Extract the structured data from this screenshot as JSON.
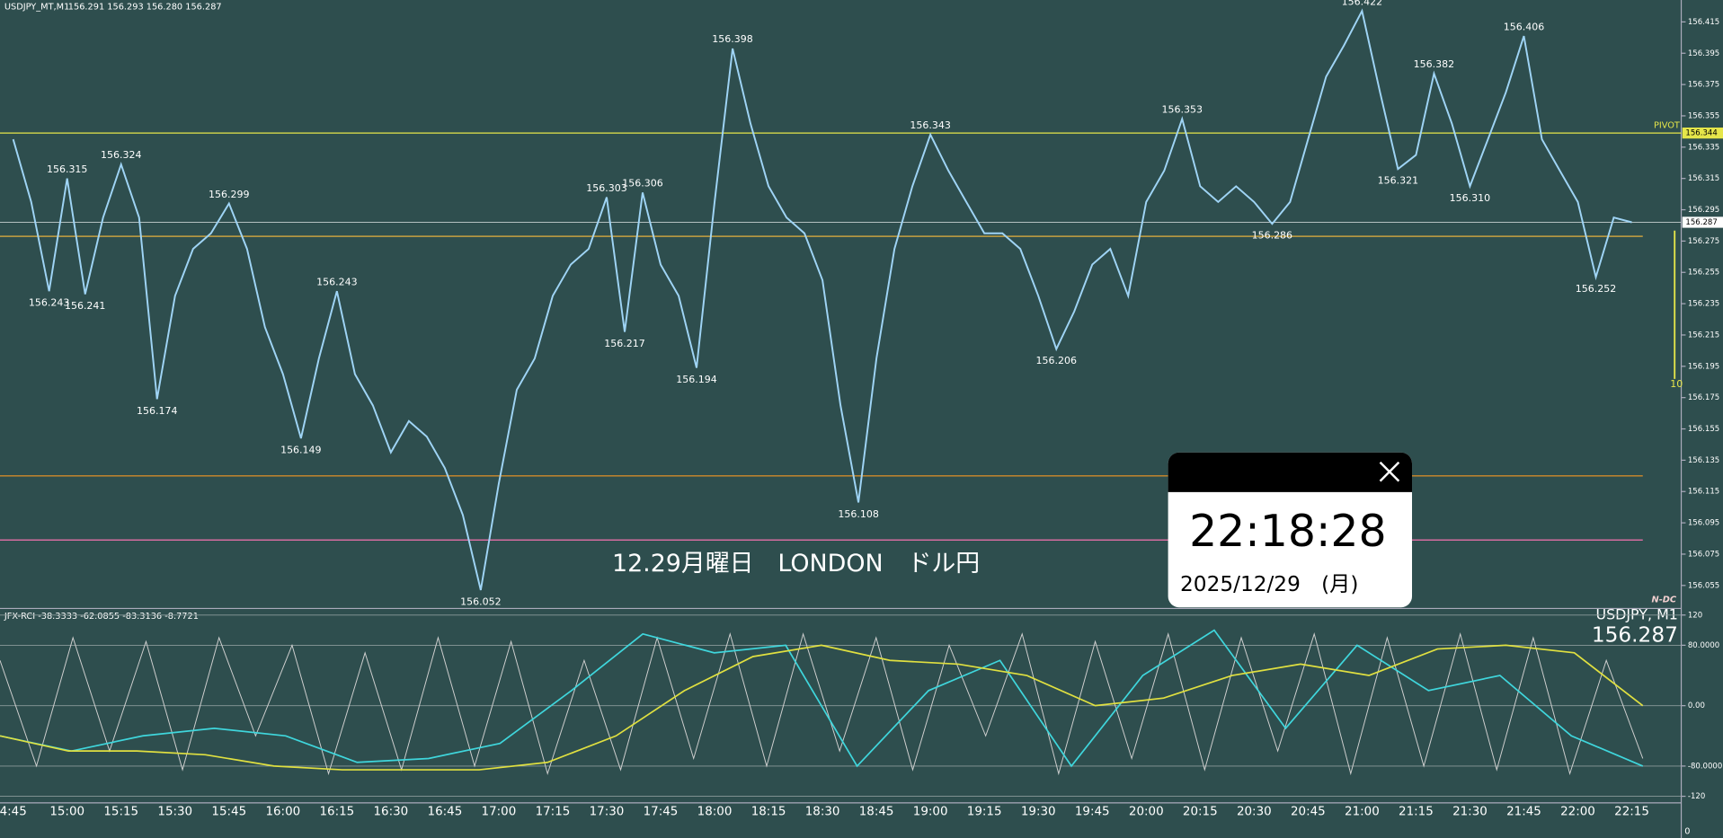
{
  "header": {
    "symbol": "USDJPY_MT,M1",
    "ohlc": "156.291 156.293 156.280 156.287"
  },
  "chart_data": [
    {
      "type": "line",
      "categories": [
        "4:45",
        null,
        null,
        "15:00",
        null,
        null,
        "15:15",
        null,
        null,
        "15:30",
        null,
        null,
        "15:45",
        null,
        null,
        "16:00",
        null,
        null,
        "16:15",
        null,
        null,
        "16:30",
        null,
        null,
        "16:45",
        null,
        null,
        "17:00",
        null,
        null,
        "17:15",
        null,
        null,
        "17:30",
        null,
        null,
        "17:45",
        null,
        null,
        "18:00",
        null,
        null,
        "18:15",
        null,
        null,
        "18:30",
        null,
        null,
        "18:45",
        null,
        null,
        "19:00",
        null,
        null,
        "19:15",
        null,
        null,
        "19:30",
        null,
        null,
        "19:45",
        null,
        null,
        "20:00",
        null,
        null,
        "20:15",
        null,
        null,
        "20:30",
        null,
        null,
        "20:45",
        null,
        null,
        "21:00",
        null,
        null,
        "21:15",
        null,
        null,
        "21:30",
        null,
        null,
        "21:45",
        null,
        null,
        "22:00",
        null,
        null,
        "22:15"
      ],
      "series": [
        {
          "color": "#9fd4f5",
          "values": [
            156.34,
            156.3,
            156.243,
            156.315,
            156.241,
            156.29,
            156.324,
            156.29,
            156.174,
            156.24,
            156.27,
            156.28,
            156.299,
            156.27,
            156.22,
            156.19,
            156.149,
            156.2,
            156.243,
            156.19,
            156.17,
            156.14,
            156.16,
            156.15,
            156.13,
            156.1,
            156.052,
            156.12,
            156.18,
            156.2,
            156.24,
            156.26,
            156.27,
            156.303,
            156.217,
            156.306,
            156.26,
            156.24,
            156.194,
            156.3,
            156.398,
            156.35,
            156.31,
            156.29,
            156.28,
            156.25,
            156.17,
            156.108,
            156.2,
            156.27,
            156.31,
            156.343,
            156.32,
            156.3,
            156.28,
            156.28,
            156.27,
            156.24,
            156.206,
            156.23,
            156.26,
            156.27,
            156.24,
            156.3,
            156.32,
            156.353,
            156.31,
            156.3,
            156.31,
            156.3,
            156.286,
            156.3,
            156.34,
            156.38,
            156.4,
            156.422,
            156.37,
            156.321,
            156.33,
            156.382,
            156.35,
            156.31,
            156.34,
            156.37,
            156.406,
            156.34,
            156.32,
            156.3,
            156.252,
            156.29,
            156.287
          ]
        }
      ],
      "annotations": [
        156.243,
        156.315,
        156.241,
        156.324,
        156.174,
        156.299,
        156.149,
        156.243,
        156.052,
        156.303,
        156.217,
        156.306,
        156.194,
        156.398,
        156.108,
        156.343,
        156.206,
        156.353,
        156.286,
        156.422,
        156.321,
        156.382,
        {
          "value": 156.31,
          "label": "156.310"
        },
        156.406,
        156.252
      ],
      "ylim": [
        156.041,
        156.429
      ],
      "yticks": [
        156.415,
        156.395,
        156.375,
        156.355,
        156.335,
        156.315,
        156.295,
        156.275,
        156.255,
        156.235,
        156.215,
        156.195,
        156.175,
        156.155,
        156.135,
        156.115,
        156.095,
        156.075,
        156.055
      ],
      "levels": [
        {
          "value": 156.125,
          "color": "#d08a2a"
        },
        {
          "value": 156.084,
          "color": "#d46ca0"
        },
        {
          "value": 156.278,
          "color": "#c8a040"
        }
      ],
      "pivot": {
        "label": "PIVOT",
        "value": 156.344,
        "color": "#e6e64a"
      },
      "last_price": 156.287,
      "title": "12.29月曜日　LONDON　ドル円",
      "indicator_label": "10",
      "logo": "N-DC"
    },
    {
      "type": "line",
      "title": "JFX-RCI -38.3333 -62.0855 -83.3136 -8.7721",
      "symbol_label": "USDJPY, M1",
      "ylim": [
        -120,
        120
      ],
      "yticks": [
        120,
        {
          "value": 80,
          "label": "80.0000"
        },
        {
          "value": 0,
          "label": "0.00"
        },
        {
          "value": -80,
          "label": "-80.0000"
        },
        -120
      ],
      "bottom_label": "0",
      "series": [
        {
          "color": "#cfcfcf",
          "values": [
            60,
            -80,
            90,
            -60,
            85,
            -85,
            90,
            -40,
            80,
            -90,
            70,
            -85,
            90,
            -80,
            85,
            -90,
            60,
            -85,
            90,
            -70,
            95,
            -80,
            95,
            -60,
            90,
            -85,
            80,
            -40,
            95,
            -90,
            85,
            -70,
            95,
            -85,
            90,
            -60,
            95,
            -90,
            90,
            -80,
            95,
            -85,
            90,
            -90,
            60,
            -70
          ]
        },
        {
          "color": "#3fd6dc",
          "values": [
            -40,
            -60,
            -40,
            -30,
            -40,
            -75,
            -70,
            -50,
            20,
            95,
            70,
            80,
            -80,
            20,
            60,
            -80,
            40,
            100,
            -30,
            80,
            20,
            40,
            -40,
            -80
          ]
        },
        {
          "color": "#e0e040",
          "values": [
            -40,
            -60,
            -60,
            -65,
            -80,
            -85,
            -85,
            -85,
            -75,
            -40,
            20,
            65,
            80,
            60,
            55,
            40,
            0,
            10,
            40,
            55,
            40,
            75,
            80,
            70,
            0
          ]
        }
      ]
    }
  ],
  "clock": {
    "time": "22:18:28",
    "date": "2025/12/29　(月)"
  }
}
